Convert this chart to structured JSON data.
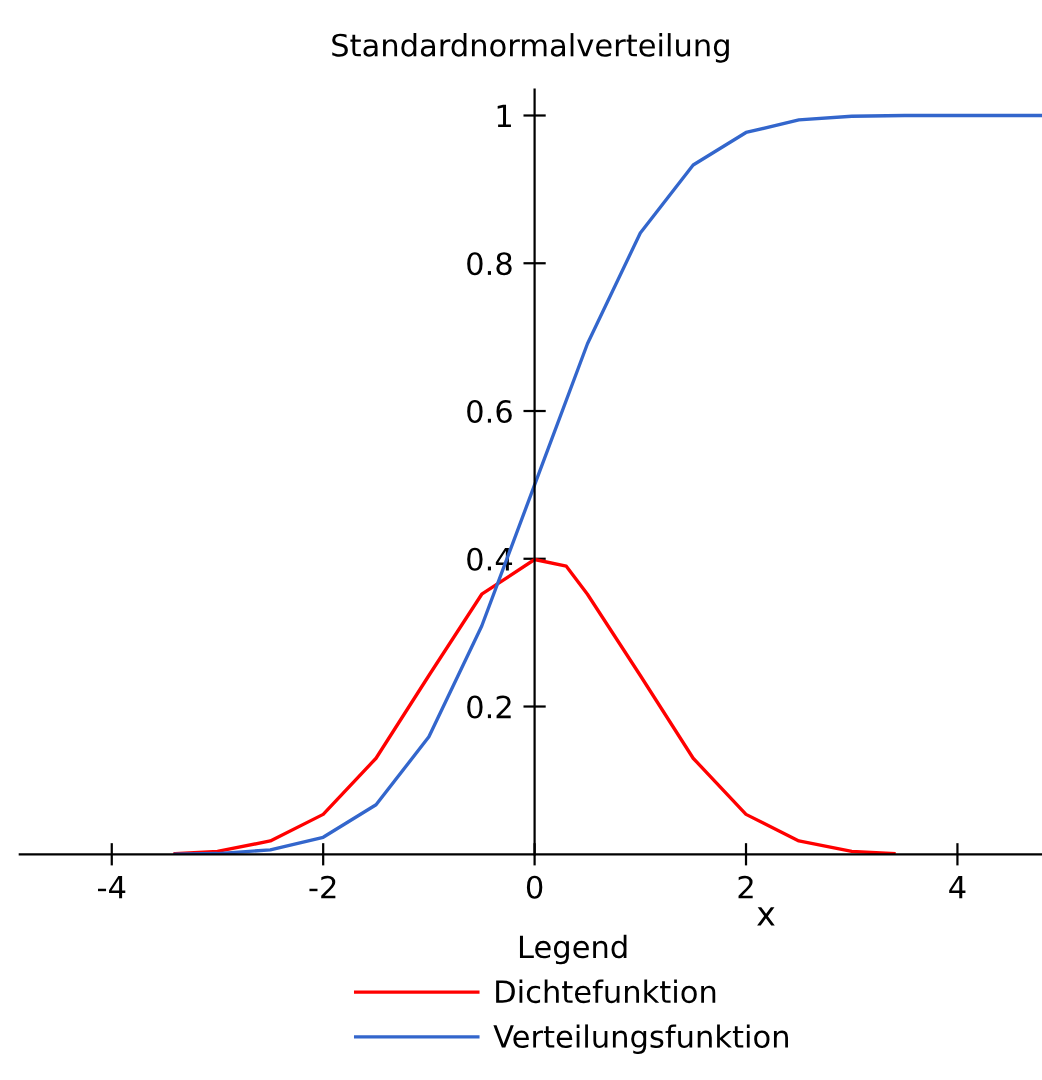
{
  "chart_data": {
    "type": "line",
    "title": "Standardnormalverteilung",
    "xlabel": "x",
    "legend_title": "Legend",
    "legend": "bottom",
    "grid": false,
    "marker": "none",
    "line_style": "solid",
    "xlim": [
      -4.87,
      4.8
    ],
    "ylim": [
      0,
      1.035
    ],
    "xticks": [
      -4,
      -2,
      0,
      2,
      4
    ],
    "yticks": [
      0.2,
      0.4,
      0.6,
      0.8,
      1
    ],
    "series": [
      {
        "name": "Dichtefunktion",
        "color": "#ff0000",
        "x": [
          -3.4,
          -3,
          -2.5,
          -2,
          -1.5,
          -1,
          -0.5,
          0,
          0.3,
          0.5,
          1,
          1.5,
          2,
          2.5,
          3,
          3.4
        ],
        "values": [
          0.001,
          0.004,
          0.018,
          0.054,
          0.13,
          0.242,
          0.352,
          0.399,
          0.39,
          0.352,
          0.242,
          0.13,
          0.054,
          0.018,
          0.004,
          0.001
        ]
      },
      {
        "name": "Verteilungsfunktion",
        "color": "#3366cc",
        "x": [
          -3.4,
          -3,
          -2.5,
          -2,
          -1.5,
          -1,
          -0.5,
          0,
          0.5,
          1,
          1.5,
          2,
          2.5,
          3,
          3.5,
          4.8
        ],
        "values": [
          0,
          0.001,
          0.006,
          0.023,
          0.067,
          0.159,
          0.309,
          0.5,
          0.691,
          0.841,
          0.933,
          0.977,
          0.994,
          0.999,
          1,
          1
        ]
      }
    ]
  }
}
